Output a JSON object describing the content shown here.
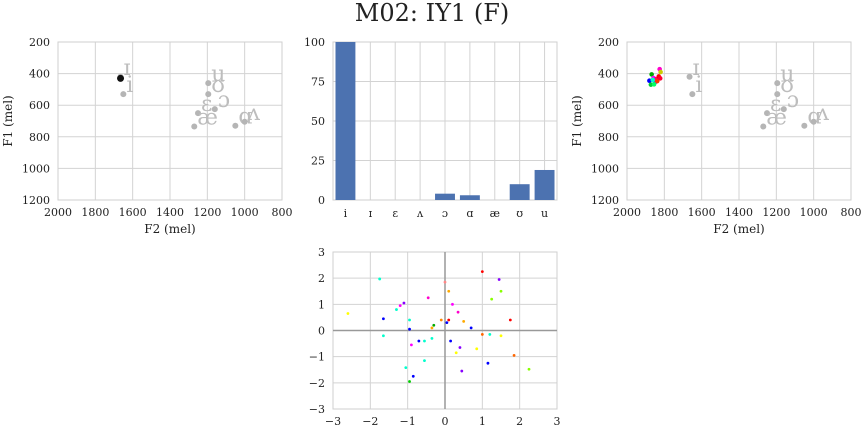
{
  "figure": {
    "title": "M02: IY1 (F)"
  },
  "chart_data": [
    {
      "type": "scatter",
      "xlabel": "F2 (mel)",
      "ylabel": "F1 (mel)",
      "xlim": [
        2000,
        800
      ],
      "ylim": [
        1200,
        200
      ],
      "xticks": [
        "2000",
        "1800",
        "1600",
        "1400",
        "1200",
        "1000",
        "800"
      ],
      "yticks": [
        "200",
        "400",
        "600",
        "800",
        "1000",
        "1200"
      ],
      "vowel_refs": [
        {
          "label": "i",
          "f2": 1650,
          "f1": 530
        },
        {
          "label": "ɪ",
          "f2": 1665,
          "f1": 420
        },
        {
          "label": "u",
          "f2": 1195,
          "f1": 460
        },
        {
          "label": "ʊ",
          "f2": 1195,
          "f1": 530
        },
        {
          "label": "ɔ",
          "f2": 1160,
          "f1": 625
        },
        {
          "label": "ɛ",
          "f2": 1250,
          "f1": 650
        },
        {
          "label": "æ",
          "f2": 1270,
          "f1": 735
        },
        {
          "label": "ɑ",
          "f2": 1050,
          "f1": 730
        },
        {
          "label": "ʌ",
          "f2": 1000,
          "f1": 705
        }
      ],
      "token_points": [
        {
          "f2": 1665,
          "f1": 430
        }
      ],
      "grid": true
    },
    {
      "type": "bar",
      "categories": [
        "i",
        "ɪ",
        "ɛ",
        "ʌ",
        "ɔ",
        "ɑ",
        "æ",
        "ʊ",
        "u"
      ],
      "values": [
        100,
        0,
        0,
        0,
        4,
        3,
        0,
        10,
        19
      ],
      "ylim": [
        0,
        100
      ],
      "yticks": [
        "0",
        "25",
        "50",
        "75",
        "100"
      ],
      "color": "#4c72b0",
      "grid": true
    },
    {
      "type": "scatter",
      "xlabel": "F2 (mel)",
      "ylabel": "F1 (mel)",
      "xlim": [
        2000,
        800
      ],
      "ylim": [
        1200,
        200
      ],
      "xticks": [
        "2000",
        "1800",
        "1600",
        "1400",
        "1200",
        "1000",
        "800"
      ],
      "yticks": [
        "200",
        "400",
        "600",
        "800",
        "1000",
        "1200"
      ],
      "token_points": [
        {
          "f2": 1868,
          "f1": 405,
          "color": "#00aa00"
        },
        {
          "f2": 1880,
          "f1": 445,
          "color": "#0000ff"
        },
        {
          "f2": 1872,
          "f1": 470,
          "color": "#00cc33"
        },
        {
          "f2": 1858,
          "f1": 428,
          "color": "#ff00ff"
        },
        {
          "f2": 1850,
          "f1": 455,
          "color": "#8800ff"
        },
        {
          "f2": 1845,
          "f1": 435,
          "color": "#ff0066"
        },
        {
          "f2": 1838,
          "f1": 448,
          "color": "#ff3300"
        },
        {
          "f2": 1830,
          "f1": 418,
          "color": "#ff0000"
        },
        {
          "f2": 1825,
          "f1": 372,
          "color": "#ff00cc"
        },
        {
          "f2": 1820,
          "f1": 390,
          "color": "#cccc00"
        },
        {
          "f2": 1822,
          "f1": 430,
          "color": "#ff0033"
        },
        {
          "f2": 1855,
          "f1": 468,
          "color": "#00ff66"
        },
        {
          "f2": 1862,
          "f1": 440,
          "color": "#00ffcc"
        }
      ],
      "vowel_refs": [
        {
          "label": "i",
          "f2": 1650,
          "f1": 530
        },
        {
          "label": "ɪ",
          "f2": 1665,
          "f1": 420
        },
        {
          "label": "u",
          "f2": 1195,
          "f1": 460
        },
        {
          "label": "ʊ",
          "f2": 1195,
          "f1": 530
        },
        {
          "label": "ɔ",
          "f2": 1160,
          "f1": 625
        },
        {
          "label": "ɛ",
          "f2": 1250,
          "f1": 650
        },
        {
          "label": "æ",
          "f2": 1270,
          "f1": 735
        },
        {
          "label": "ɑ",
          "f2": 1050,
          "f1": 730
        },
        {
          "label": "ʌ",
          "f2": 1000,
          "f1": 705
        }
      ],
      "grid": true
    },
    {
      "type": "scatter",
      "xlim": [
        -3,
        3
      ],
      "ylim": [
        -3,
        3
      ],
      "xticks": [
        "−3",
        "−2",
        "−1",
        "0",
        "1",
        "2",
        "3"
      ],
      "yticks": [
        "−3",
        "−2",
        "−1",
        "0",
        "1",
        "2",
        "3"
      ],
      "points": [
        {
          "x": -2.6,
          "y": 0.65,
          "color": "#ffff00"
        },
        {
          "x": -1.75,
          "y": 1.97,
          "color": "#00ffcc"
        },
        {
          "x": -1.65,
          "y": 0.45,
          "color": "#0000ff"
        },
        {
          "x": -1.65,
          "y": -0.2,
          "color": "#00ffcc"
        },
        {
          "x": -1.3,
          "y": 0.8,
          "color": "#00ffcc"
        },
        {
          "x": -1.2,
          "y": 0.95,
          "color": "#ff00ff"
        },
        {
          "x": -1.1,
          "y": 1.05,
          "color": "#8800ff"
        },
        {
          "x": -1.05,
          "y": -1.42,
          "color": "#00ffcc"
        },
        {
          "x": -0.95,
          "y": 0.4,
          "color": "#00ffcc"
        },
        {
          "x": -0.95,
          "y": 0.05,
          "color": "#0000ff"
        },
        {
          "x": -0.9,
          "y": -0.55,
          "color": "#ff00ff"
        },
        {
          "x": -0.95,
          "y": -1.95,
          "color": "#00cc00"
        },
        {
          "x": -0.85,
          "y": -1.75,
          "color": "#0000ff"
        },
        {
          "x": -0.7,
          "y": -0.4,
          "color": "#0000ff"
        },
        {
          "x": -0.55,
          "y": -0.4,
          "color": "#00ffcc"
        },
        {
          "x": -0.55,
          "y": -1.15,
          "color": "#00ffcc"
        },
        {
          "x": -0.45,
          "y": 1.25,
          "color": "#ff00cc"
        },
        {
          "x": -0.35,
          "y": 0.1,
          "color": "#ffaa00"
        },
        {
          "x": -0.35,
          "y": -0.3,
          "color": "#00ffcc"
        },
        {
          "x": -0.3,
          "y": 0.2,
          "color": "#00aa00"
        },
        {
          "x": -0.1,
          "y": 0.4,
          "color": "#ff8800"
        },
        {
          "x": 0.0,
          "y": 1.85,
          "color": "#ff8888"
        },
        {
          "x": 0.05,
          "y": 0.3,
          "color": "#0000ff"
        },
        {
          "x": 0.1,
          "y": 1.5,
          "color": "#ffaa00"
        },
        {
          "x": 0.1,
          "y": 0.4,
          "color": "#ff0000"
        },
        {
          "x": 0.15,
          "y": -0.4,
          "color": "#0000ff"
        },
        {
          "x": 0.2,
          "y": 1.0,
          "color": "#ff00ff"
        },
        {
          "x": 0.3,
          "y": -0.85,
          "color": "#ffff00"
        },
        {
          "x": 0.35,
          "y": 0.7,
          "color": "#ff00cc"
        },
        {
          "x": 0.4,
          "y": -0.65,
          "color": "#8800ff"
        },
        {
          "x": 0.45,
          "y": -1.55,
          "color": "#8800ff"
        },
        {
          "x": 0.5,
          "y": 0.35,
          "color": "#ffaa00"
        },
        {
          "x": 0.7,
          "y": 0.1,
          "color": "#0000ff"
        },
        {
          "x": 0.85,
          "y": -0.7,
          "color": "#ffff00"
        },
        {
          "x": 1.0,
          "y": 2.25,
          "color": "#ff0000"
        },
        {
          "x": 1.0,
          "y": -0.15,
          "color": "#ff6600"
        },
        {
          "x": 1.15,
          "y": -1.25,
          "color": "#0000ff"
        },
        {
          "x": 1.2,
          "y": -0.15,
          "color": "#00ffcc"
        },
        {
          "x": 1.25,
          "y": 1.2,
          "color": "#88ff00"
        },
        {
          "x": 1.45,
          "y": 1.95,
          "color": "#8800ff"
        },
        {
          "x": 1.5,
          "y": 1.5,
          "color": "#88ff00"
        },
        {
          "x": 1.5,
          "y": -0.2,
          "color": "#ffff00"
        },
        {
          "x": 1.75,
          "y": 0.4,
          "color": "#ff0000"
        },
        {
          "x": 1.85,
          "y": -0.95,
          "color": "#ff6600"
        },
        {
          "x": 2.25,
          "y": -1.48,
          "color": "#88ff00"
        }
      ],
      "grid": true
    }
  ]
}
